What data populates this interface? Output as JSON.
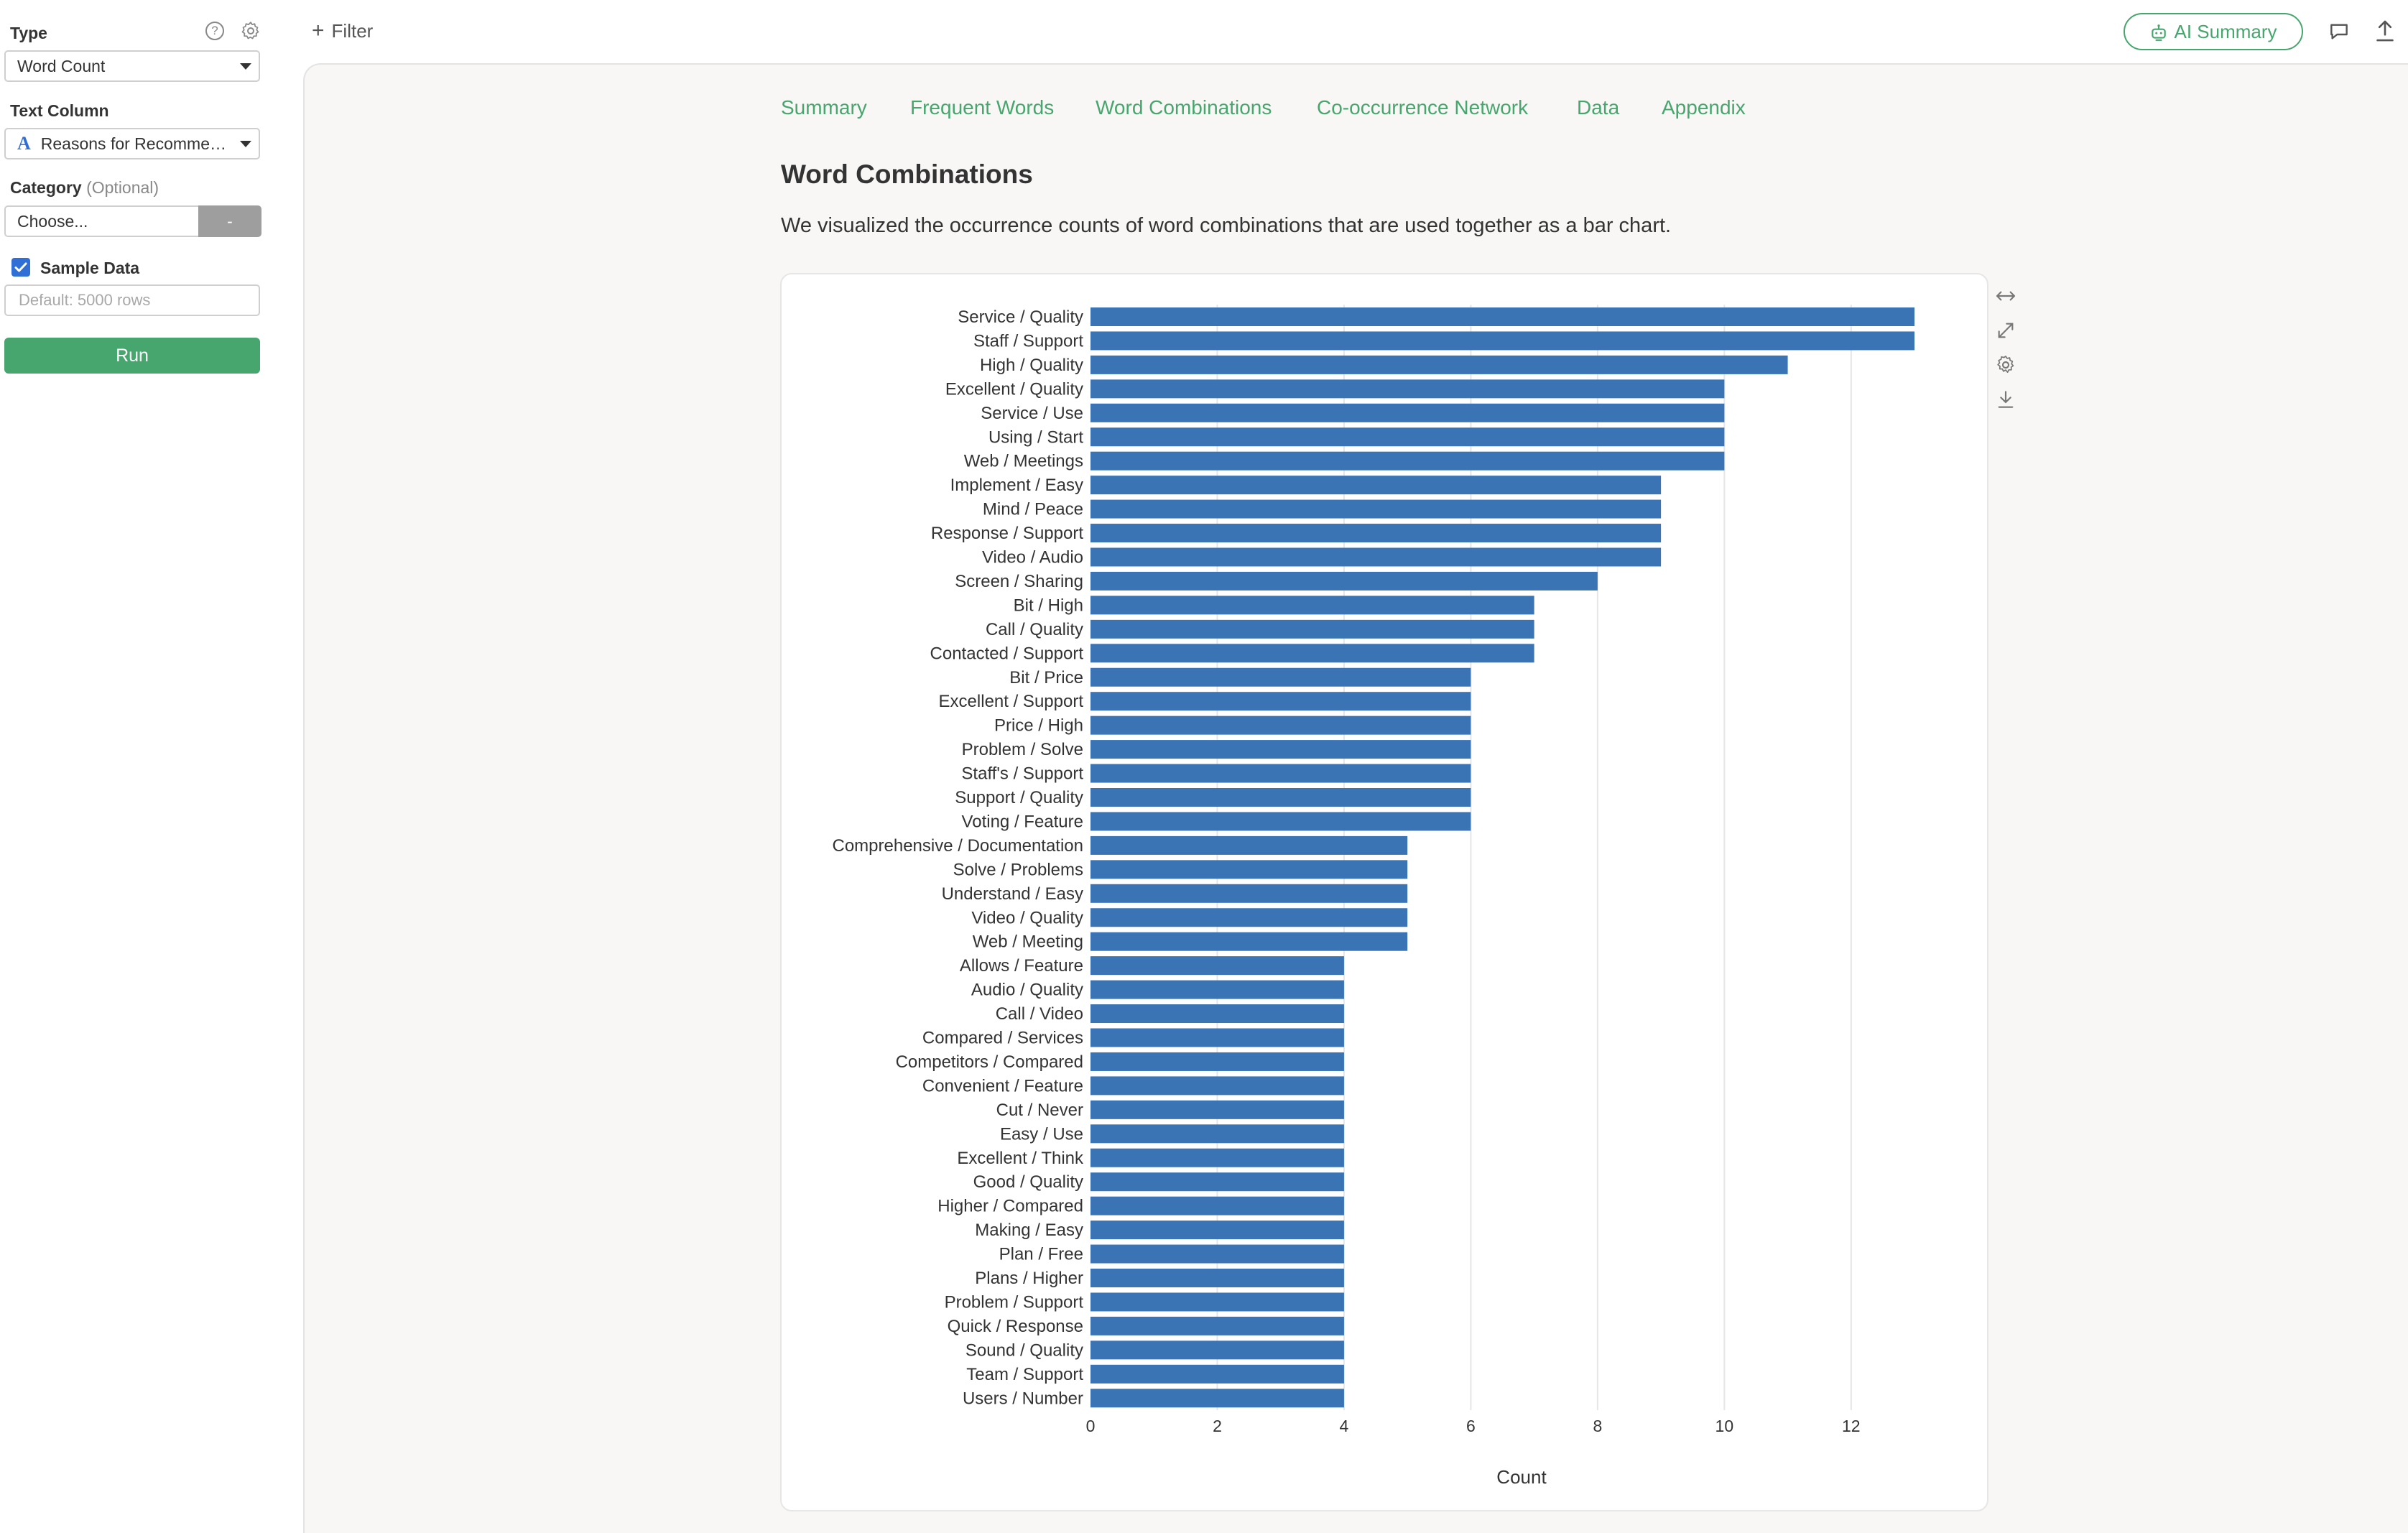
{
  "sidebar": {
    "type_label": "Type",
    "type_value": "Word Count",
    "text_column_label": "Text Column",
    "text_column_icon": "A",
    "text_column_value": "Reasons for Recomme…",
    "category_label": "Category",
    "category_optional": "(Optional)",
    "category_placeholder": "Choose...",
    "category_clear": "-",
    "sample_data_label": "Sample Data",
    "sample_data_checked": true,
    "rows_placeholder": "Default: 5000 rows",
    "run_label": "Run"
  },
  "topbar": {
    "filter_label": "Filter",
    "ai_summary_label": "AI Summary"
  },
  "tabs": [
    "Summary",
    "Frequent Words",
    "Word Combinations",
    "Co-occurrence Network",
    "Data",
    "Appendix"
  ],
  "section": {
    "title": "Word Combinations",
    "description": "We visualized the occurrence counts of word combinations that are used together as a bar chart."
  },
  "colors": {
    "accent": "#47a56e",
    "bar": "#3b74b5",
    "checkbox": "#2f6fd6"
  },
  "chart_data": {
    "type": "bar",
    "orientation": "horizontal",
    "categories": [
      "Service / Quality",
      "Staff / Support",
      "High / Quality",
      "Excellent / Quality",
      "Service / Use",
      "Using / Start",
      "Web / Meetings",
      "Implement / Easy",
      "Mind / Peace",
      "Response / Support",
      "Video / Audio",
      "Screen / Sharing",
      "Bit / High",
      "Call / Quality",
      "Contacted / Support",
      "Bit / Price",
      "Excellent / Support",
      "Price / High",
      "Problem / Solve",
      "Staff's / Support",
      "Support / Quality",
      "Voting / Feature",
      "Comprehensive / Documentation",
      "Solve / Problems",
      "Understand / Easy",
      "Video / Quality",
      "Web / Meeting",
      "Allows / Feature",
      "Audio / Quality",
      "Call / Video",
      "Compared / Services",
      "Competitors / Compared",
      "Convenient / Feature",
      "Cut / Never",
      "Easy / Use",
      "Excellent / Think",
      "Good / Quality",
      "Higher / Compared",
      "Making / Easy",
      "Plan / Free",
      "Plans / Higher",
      "Problem / Support",
      "Quick / Response",
      "Sound / Quality",
      "Team / Support",
      "Users / Number"
    ],
    "values": [
      13,
      13,
      11,
      10,
      10,
      10,
      10,
      9,
      9,
      9,
      9,
      8,
      7,
      7,
      7,
      6,
      6,
      6,
      6,
      6,
      6,
      6,
      5,
      5,
      5,
      5,
      5,
      4,
      4,
      4,
      4,
      4,
      4,
      4,
      4,
      4,
      4,
      4,
      4,
      4,
      4,
      4,
      4,
      4,
      4,
      4
    ],
    "xlabel": "Count",
    "ylabel": "",
    "xlim": [
      0,
      13.6
    ],
    "xticks": [
      0,
      2,
      4,
      6,
      8,
      10,
      12
    ],
    "grid": true
  }
}
